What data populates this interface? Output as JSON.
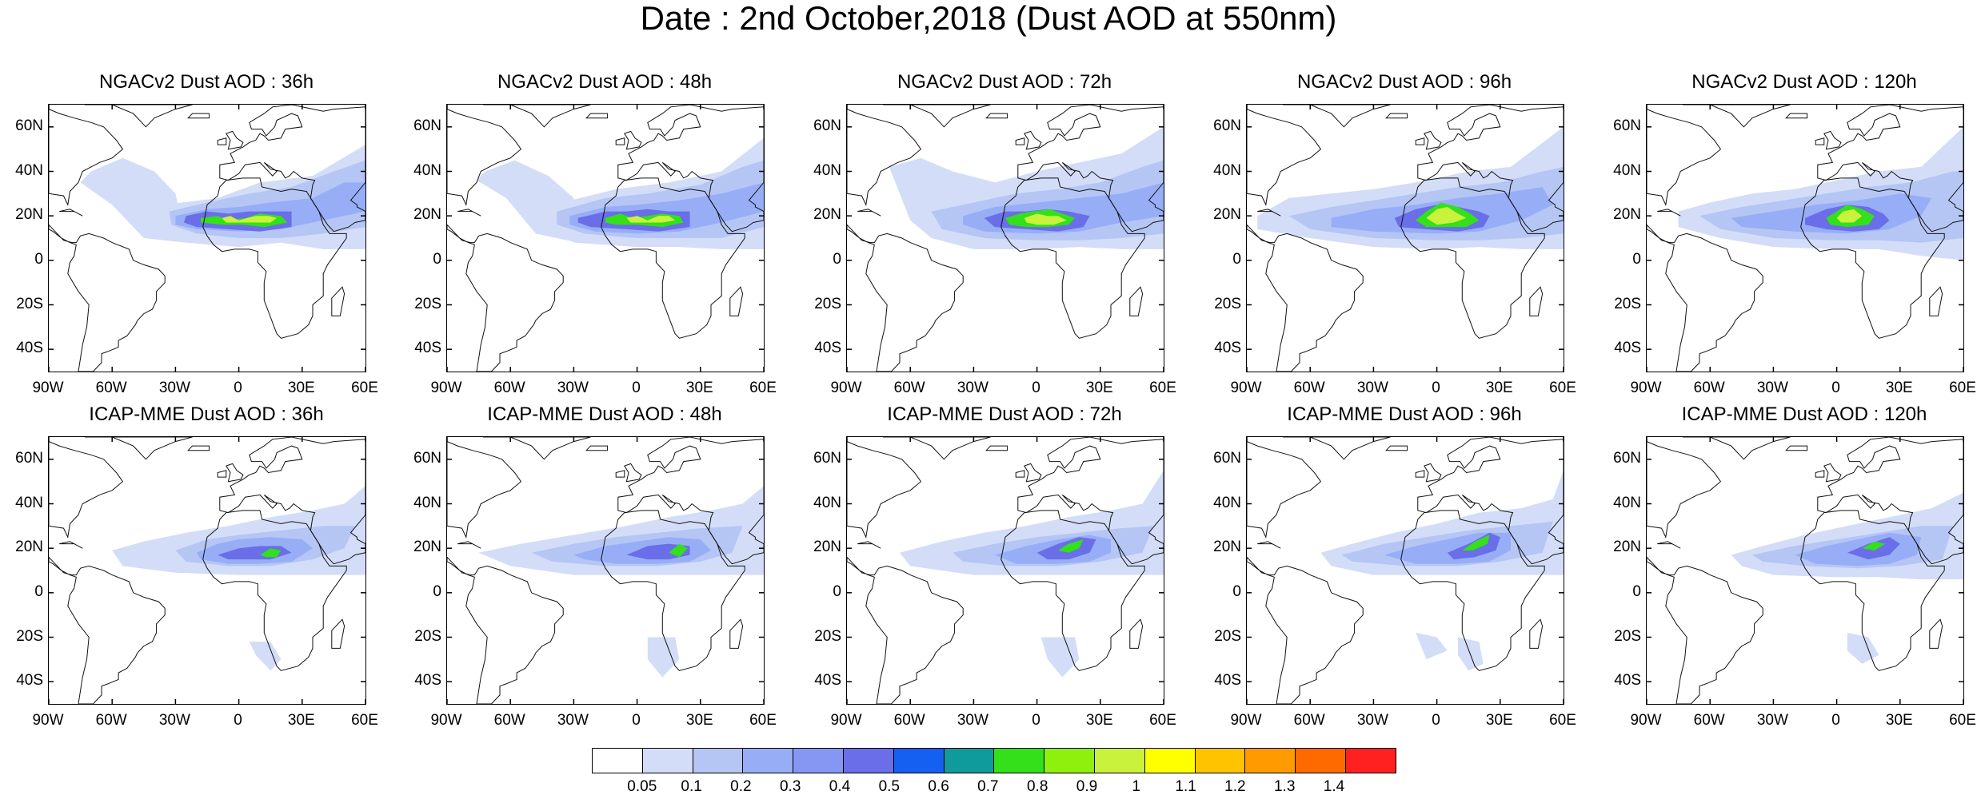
{
  "title": "Date : 2nd October,2018 (Dust AOD at 550nm)",
  "panels": [
    {
      "label": "NGACv2 Dust AOD : 36h"
    },
    {
      "label": "NGACv2 Dust AOD : 48h"
    },
    {
      "label": "NGACv2 Dust AOD : 72h"
    },
    {
      "label": "NGACv2 Dust AOD : 96h"
    },
    {
      "label": "NGACv2 Dust AOD : 120h"
    },
    {
      "label": "ICAP-MME Dust AOD : 36h"
    },
    {
      "label": "ICAP-MME Dust AOD : 48h"
    },
    {
      "label": "ICAP-MME Dust AOD : 72h"
    },
    {
      "label": "ICAP-MME Dust AOD : 96h"
    },
    {
      "label": "ICAP-MME Dust AOD : 120h"
    }
  ],
  "map": {
    "lat_ticks": [
      "60N",
      "40N",
      "20N",
      "0",
      "20S",
      "40S"
    ],
    "lat_values": [
      60,
      40,
      20,
      0,
      -20,
      -40
    ],
    "lon_ticks": [
      "90W",
      "60W",
      "30W",
      "0",
      "30E",
      "60E"
    ],
    "lon_values": [
      -90,
      -60,
      -30,
      0,
      30,
      60
    ],
    "lat_range": [
      -50,
      70
    ],
    "lon_range": [
      -90,
      60
    ]
  },
  "colorbar": {
    "labels": [
      "0.05",
      "0.1",
      "0.2",
      "0.3",
      "0.4",
      "0.5",
      "0.6",
      "0.7",
      "0.8",
      "0.9",
      "1",
      "1.1",
      "1.2",
      "1.3",
      "1.4"
    ],
    "colors": [
      "#ffffff",
      "#d3ddf8",
      "#b5c6f5",
      "#97aef7",
      "#8697f3",
      "#6a6ee8",
      "#1560f0",
      "#0f9b9b",
      "#33e01a",
      "#8ef00c",
      "#c8f23c",
      "#ffff00",
      "#ffc300",
      "#ff9b00",
      "#ff6a00",
      "#ff2020"
    ]
  }
}
